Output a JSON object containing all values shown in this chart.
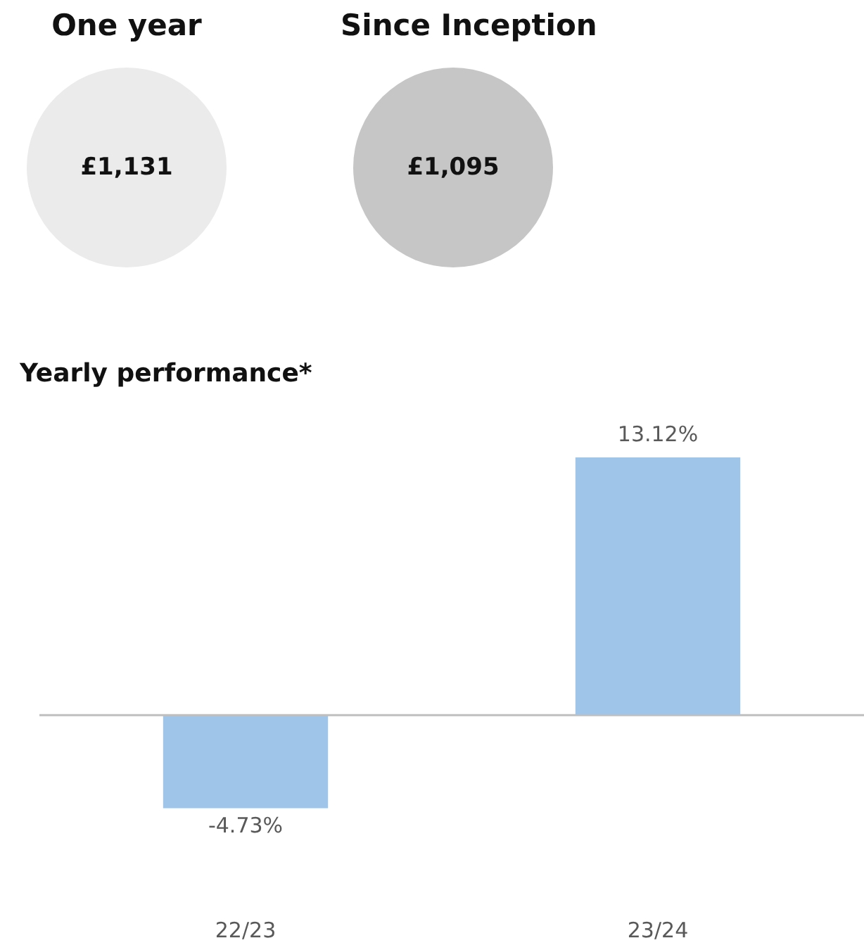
{
  "chart_data": [
    {
      "type": "other",
      "annotations": [
        "One year",
        "£1,131",
        "Since Inception",
        "£1,095"
      ],
      "colors": [
        "#ebebeb",
        "#c6c6c6"
      ]
    },
    {
      "type": "bar",
      "title": "Yearly performance*",
      "categories": [
        "22/23",
        "23/24"
      ],
      "values": [
        -4.73,
        13.12
      ],
      "color": "#9fc5e8",
      "value_labels": [
        "-4.73%",
        "13.12%"
      ],
      "grid": false,
      "legend": false
    }
  ]
}
